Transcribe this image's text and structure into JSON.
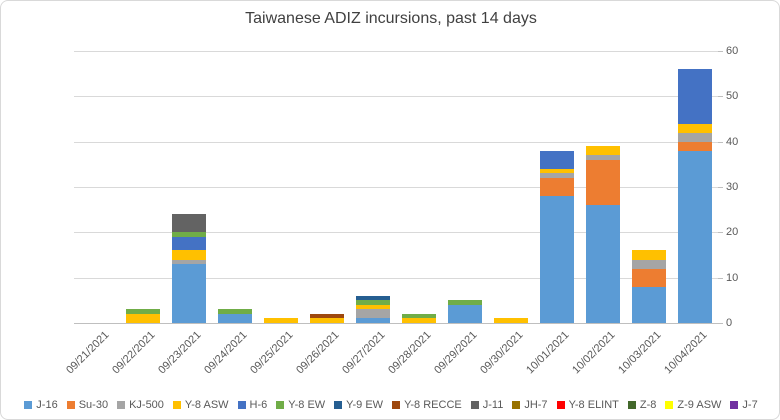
{
  "chart_data": {
    "type": "bar",
    "stacked": true,
    "title": "Taiwanese ADIZ incursions, past 14 days",
    "xlabel": "",
    "ylabel": "",
    "ylim": [
      0,
      60
    ],
    "yticks": [
      0,
      10,
      20,
      30,
      40,
      50,
      60
    ],
    "y_axis_side": "right",
    "grid": true,
    "legend_position": "bottom",
    "categories": [
      "09/21/2021",
      "09/22/2021",
      "09/23/2021",
      "09/24/2021",
      "09/25/2021",
      "09/26/2021",
      "09/27/2021",
      "09/28/2021",
      "09/29/2021",
      "09/30/2021",
      "10/01/2021",
      "10/02/2021",
      "10/03/2021",
      "10/04/2021"
    ],
    "series": [
      {
        "name": "J-16",
        "color": "#5B9BD5",
        "values": [
          0,
          0,
          13,
          2,
          0,
          0,
          1,
          0,
          4,
          0,
          28,
          26,
          8,
          38
        ]
      },
      {
        "name": "Su-30",
        "color": "#ED7D31",
        "values": [
          0,
          0,
          0,
          0,
          0,
          0,
          0,
          0,
          0,
          0,
          4,
          10,
          4,
          2
        ]
      },
      {
        "name": "KJ-500",
        "color": "#A5A5A5",
        "values": [
          0,
          0,
          1,
          0,
          0,
          0,
          2,
          0,
          0,
          0,
          1,
          1,
          2,
          2
        ]
      },
      {
        "name": "Y-8 ASW",
        "color": "#FFC000",
        "values": [
          0,
          2,
          2,
          0,
          1,
          1,
          1,
          1,
          0,
          1,
          1,
          2,
          2,
          2
        ]
      },
      {
        "name": "H-6",
        "color": "#4472C4",
        "values": [
          0,
          0,
          3,
          0,
          0,
          0,
          0,
          0,
          0,
          0,
          4,
          0,
          0,
          12
        ]
      },
      {
        "name": "Y-8 EW",
        "color": "#70AD47",
        "values": [
          0,
          1,
          1,
          1,
          0,
          0,
          1,
          1,
          1,
          0,
          0,
          0,
          0,
          0
        ]
      },
      {
        "name": "Y-9 EW",
        "color": "#255E91",
        "values": [
          0,
          0,
          0,
          0,
          0,
          0,
          1,
          0,
          0,
          0,
          0,
          0,
          0,
          0
        ]
      },
      {
        "name": "Y-8 RECCE",
        "color": "#9E480E",
        "values": [
          0,
          0,
          0,
          0,
          0,
          1,
          0,
          0,
          0,
          0,
          0,
          0,
          0,
          0
        ]
      },
      {
        "name": "J-11",
        "color": "#636363",
        "values": [
          0,
          0,
          4,
          0,
          0,
          0,
          0,
          0,
          0,
          0,
          0,
          0,
          0,
          0
        ]
      },
      {
        "name": "JH-7",
        "color": "#997300",
        "values": [
          0,
          0,
          0,
          0,
          0,
          0,
          0,
          0,
          0,
          0,
          0,
          0,
          0,
          0
        ]
      },
      {
        "name": "Y-8 ELINT",
        "color": "#FF0000",
        "values": [
          0,
          0,
          0,
          0,
          0,
          0,
          0,
          0,
          0,
          0,
          0,
          0,
          0,
          0
        ]
      },
      {
        "name": "Z-8",
        "color": "#43682B",
        "values": [
          0,
          0,
          0,
          0,
          0,
          0,
          0,
          0,
          0,
          0,
          0,
          0,
          0,
          0
        ]
      },
      {
        "name": "Z-9 ASW",
        "color": "#FFFF00",
        "values": [
          0,
          0,
          0,
          0,
          0,
          0,
          0,
          0,
          0,
          0,
          0,
          0,
          0,
          0
        ]
      },
      {
        "name": "J-7",
        "color": "#7030A0",
        "values": [
          0,
          0,
          0,
          0,
          0,
          0,
          0,
          0,
          0,
          0,
          0,
          0,
          0,
          0
        ]
      }
    ]
  },
  "style": {
    "gridline_color": "#d9d9d9",
    "axis_line_color": "#bfbfbf",
    "tick_label_color": "#595959",
    "title_color": "#404040"
  }
}
